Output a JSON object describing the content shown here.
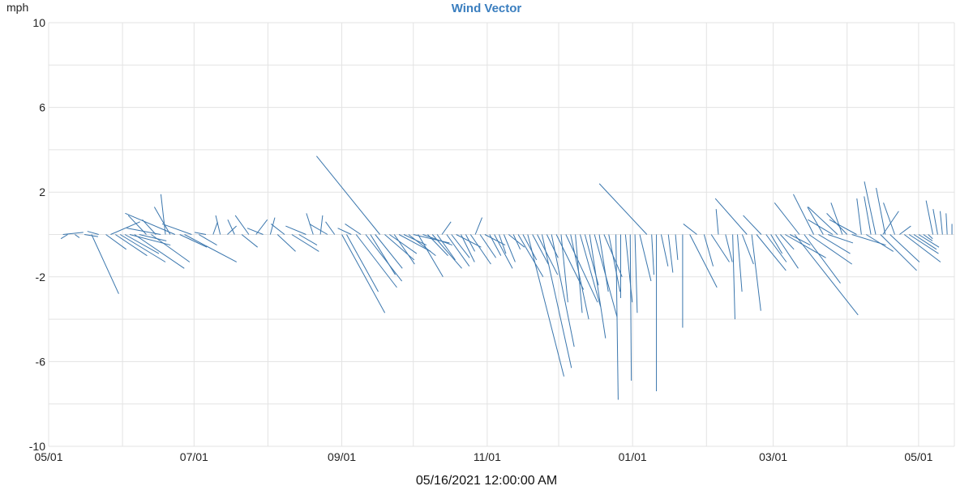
{
  "chart_data": {
    "type": "vector",
    "title": "Wind Vector",
    "ylabel": "mph",
    "ylim": [
      -10,
      10
    ],
    "yticks": [
      10,
      6,
      2,
      -2,
      -6,
      -10
    ],
    "xlim": [
      "2021-05-01",
      "2022-05-16"
    ],
    "xticks": [
      {
        "date": "2021-05-01",
        "label": "05/01"
      },
      {
        "date": "2021-07-01",
        "label": "07/01"
      },
      {
        "date": "2021-09-01",
        "label": "09/01"
      },
      {
        "date": "2021-11-01",
        "label": "11/01"
      },
      {
        "date": "2022-01-01",
        "label": "01/01"
      },
      {
        "date": "2022-03-01",
        "label": "03/01"
      },
      {
        "date": "2022-05-01",
        "label": "05/01"
      }
    ],
    "grid": true,
    "vector_time_unit": "days per mph",
    "vector_time_scale": 9.5,
    "series_color": "#3a76ad",
    "vectors": [
      {
        "date": "2021-05-07",
        "u": 0.9,
        "v": 0.1
      },
      {
        "date": "2021-05-09",
        "u": -0.3,
        "v": -0.2
      },
      {
        "date": "2021-05-12",
        "u": 0.2,
        "v": -0.15
      },
      {
        "date": "2021-05-16",
        "u": 0.6,
        "v": -0.1
      },
      {
        "date": "2021-05-19",
        "u": 1.2,
        "v": -2.8
      },
      {
        "date": "2021-05-22",
        "u": -0.5,
        "v": 0.15
      },
      {
        "date": "2021-05-25",
        "u": 0.9,
        "v": -0.7
      },
      {
        "date": "2021-05-27",
        "u": 1.3,
        "v": 0.6
      },
      {
        "date": "2021-05-29",
        "u": 1.4,
        "v": -1.0
      },
      {
        "date": "2021-05-31",
        "u": 2.0,
        "v": -1.3
      },
      {
        "date": "2021-06-02",
        "u": 1.5,
        "v": -0.9
      },
      {
        "date": "2021-06-04",
        "u": 1.8,
        "v": -0.5
      },
      {
        "date": "2021-06-06",
        "u": 2.2,
        "v": -1.6
      },
      {
        "date": "2021-06-08",
        "u": 1.2,
        "v": -0.3
      },
      {
        "date": "2021-06-11",
        "u": -0.8,
        "v": 0.9
      },
      {
        "date": "2021-06-13",
        "u": 1.7,
        "v": -1.3
      },
      {
        "date": "2021-06-15",
        "u": -0.6,
        "v": 0.7
      },
      {
        "date": "2021-06-17",
        "u": -1.5,
        "v": 0.3
      },
      {
        "date": "2021-06-19",
        "u": -0.2,
        "v": 1.9
      },
      {
        "date": "2021-06-21",
        "u": -0.7,
        "v": 1.3
      },
      {
        "date": "2021-06-23",
        "u": -2.2,
        "v": 1.0
      },
      {
        "date": "2021-06-25",
        "u": 1.2,
        "v": -0.6
      },
      {
        "date": "2021-06-27",
        "u": 2.3,
        "v": -1.3
      },
      {
        "date": "2021-06-30",
        "u": -1.3,
        "v": 0.5
      },
      {
        "date": "2021-07-03",
        "u": 0.8,
        "v": -0.5
      },
      {
        "date": "2021-07-06",
        "u": -0.5,
        "v": 0.1
      },
      {
        "date": "2021-07-09",
        "u": 0.2,
        "v": 0.6
      },
      {
        "date": "2021-07-12",
        "u": -0.2,
        "v": 0.9
      },
      {
        "date": "2021-07-15",
        "u": 0.4,
        "v": 0.4
      },
      {
        "date": "2021-07-18",
        "u": -0.3,
        "v": 0.7
      },
      {
        "date": "2021-07-21",
        "u": 0.7,
        "v": -0.6
      },
      {
        "date": "2021-07-24",
        "u": -0.6,
        "v": 0.9
      },
      {
        "date": "2021-07-27",
        "u": 0.5,
        "v": 0.7
      },
      {
        "date": "2021-07-30",
        "u": -0.7,
        "v": 0.3
      },
      {
        "date": "2021-08-02",
        "u": 0.2,
        "v": 0.8
      },
      {
        "date": "2021-08-05",
        "u": 0.8,
        "v": -0.8
      },
      {
        "date": "2021-08-08",
        "u": -0.6,
        "v": 0.5
      },
      {
        "date": "2021-08-11",
        "u": 1.2,
        "v": -0.8
      },
      {
        "date": "2021-08-14",
        "u": 0.8,
        "v": -0.5
      },
      {
        "date": "2021-08-17",
        "u": -0.9,
        "v": 0.4
      },
      {
        "date": "2021-08-20",
        "u": -0.3,
        "v": 1.0
      },
      {
        "date": "2021-08-23",
        "u": 0.1,
        "v": 0.9
      },
      {
        "date": "2021-08-26",
        "u": -0.8,
        "v": 0.5
      },
      {
        "date": "2021-08-29",
        "u": -0.4,
        "v": 0.6
      },
      {
        "date": "2021-09-01",
        "u": 1.9,
        "v": -3.7
      },
      {
        "date": "2021-09-03",
        "u": 1.4,
        "v": -2.7
      },
      {
        "date": "2021-09-05",
        "u": -0.6,
        "v": 0.3
      },
      {
        "date": "2021-09-07",
        "u": 1.8,
        "v": -2.5
      },
      {
        "date": "2021-09-09",
        "u": -0.7,
        "v": 0.5
      },
      {
        "date": "2021-09-11",
        "u": 1.6,
        "v": -2.2
      },
      {
        "date": "2021-09-13",
        "u": 1.1,
        "v": -1.9
      },
      {
        "date": "2021-09-15",
        "u": 1.2,
        "v": -1.6
      },
      {
        "date": "2021-09-17",
        "u": -2.8,
        "v": 3.7
      },
      {
        "date": "2021-09-19",
        "u": 1.3,
        "v": -1.2
      },
      {
        "date": "2021-09-21",
        "u": 1.2,
        "v": -0.9
      },
      {
        "date": "2021-09-23",
        "u": 0.9,
        "v": -1.4
      },
      {
        "date": "2021-09-25",
        "u": 1.4,
        "v": -0.8
      },
      {
        "date": "2021-09-27",
        "u": 1.0,
        "v": -0.5
      },
      {
        "date": "2021-09-29",
        "u": 1.2,
        "v": -1.0
      },
      {
        "date": "2021-10-01",
        "u": 1.6,
        "v": -0.4
      },
      {
        "date": "2021-10-03",
        "u": 1.1,
        "v": -2.0
      },
      {
        "date": "2021-10-05",
        "u": 1.3,
        "v": -0.5
      },
      {
        "date": "2021-10-07",
        "u": 0.9,
        "v": -1.0
      },
      {
        "date": "2021-10-09",
        "u": 1.3,
        "v": -1.6
      },
      {
        "date": "2021-10-11",
        "u": 0.8,
        "v": -1.2
      },
      {
        "date": "2021-10-13",
        "u": 0.4,
        "v": 0.6
      },
      {
        "date": "2021-10-15",
        "u": 1.0,
        "v": -1.5
      },
      {
        "date": "2021-10-17",
        "u": 0.8,
        "v": -1.1
      },
      {
        "date": "2021-10-19",
        "u": 1.1,
        "v": -0.6
      },
      {
        "date": "2021-10-21",
        "u": 0.6,
        "v": -1.3
      },
      {
        "date": "2021-10-23",
        "u": 0.4,
        "v": -0.8
      },
      {
        "date": "2021-10-25",
        "u": 0.9,
        "v": -1.4
      },
      {
        "date": "2021-10-27",
        "u": 0.3,
        "v": 0.8
      },
      {
        "date": "2021-10-29",
        "u": 0.7,
        "v": -1.1
      },
      {
        "date": "2021-10-31",
        "u": 0.9,
        "v": -0.5
      },
      {
        "date": "2021-11-02",
        "u": 0.5,
        "v": -1.0
      },
      {
        "date": "2021-11-04",
        "u": 0.8,
        "v": -1.6
      },
      {
        "date": "2021-11-06",
        "u": 0.3,
        "v": -0.9
      },
      {
        "date": "2021-11-08",
        "u": 0.5,
        "v": -1.3
      },
      {
        "date": "2021-11-10",
        "u": 0.7,
        "v": -0.6
      },
      {
        "date": "2021-11-12",
        "u": 0.3,
        "v": -0.7
      },
      {
        "date": "2021-11-14",
        "u": 1.1,
        "v": -2.0
      },
      {
        "date": "2021-11-16",
        "u": 0.6,
        "v": -1.2
      },
      {
        "date": "2021-11-18",
        "u": 1.6,
        "v": -6.7
      },
      {
        "date": "2021-11-20",
        "u": 0.7,
        "v": -1.4
      },
      {
        "date": "2021-11-22",
        "u": 0.9,
        "v": -1.9
      },
      {
        "date": "2021-11-24",
        "u": 1.3,
        "v": -6.3
      },
      {
        "date": "2021-11-26",
        "u": 0.5,
        "v": -1.1
      },
      {
        "date": "2021-11-28",
        "u": 1.0,
        "v": -5.3
      },
      {
        "date": "2021-11-30",
        "u": 1.2,
        "v": -2.6
      },
      {
        "date": "2021-12-02",
        "u": 0.3,
        "v": -3.2
      },
      {
        "date": "2021-12-04",
        "u": 1.4,
        "v": -3.2
      },
      {
        "date": "2021-12-06",
        "u": 0.8,
        "v": -4.0
      },
      {
        "date": "2021-12-08",
        "u": 0.3,
        "v": -3.7
      },
      {
        "date": "2021-12-10",
        "u": 0.9,
        "v": -3.4
      },
      {
        "date": "2021-12-12",
        "u": 0.6,
        "v": -2.4
      },
      {
        "date": "2021-12-14",
        "u": 0.7,
        "v": -4.9
      },
      {
        "date": "2021-12-16",
        "u": 1.0,
        "v": -3.9
      },
      {
        "date": "2021-12-18",
        "u": 0.4,
        "v": -2.7
      },
      {
        "date": "2021-12-20",
        "u": 0.8,
        "v": -2.0
      },
      {
        "date": "2021-12-22",
        "u": 0.5,
        "v": -2.7
      },
      {
        "date": "2021-12-25",
        "u": 0.1,
        "v": -7.8
      },
      {
        "date": "2021-12-27",
        "u": 0.0,
        "v": -3.0
      },
      {
        "date": "2021-12-29",
        "u": 0.3,
        "v": -3.2
      },
      {
        "date": "2021-12-31",
        "u": 0.05,
        "v": -6.9
      },
      {
        "date": "2022-01-02",
        "u": 0.1,
        "v": -3.7
      },
      {
        "date": "2022-01-04",
        "u": 0.5,
        "v": -2.2
      },
      {
        "date": "2022-01-07",
        "u": -2.1,
        "v": 2.4
      },
      {
        "date": "2022-01-09",
        "u": 0.1,
        "v": -1.9
      },
      {
        "date": "2022-01-11",
        "u": 0.0,
        "v": -7.4
      },
      {
        "date": "2022-01-13",
        "u": 0.3,
        "v": -1.5
      },
      {
        "date": "2022-01-16",
        "u": 0.2,
        "v": -1.8
      },
      {
        "date": "2022-01-19",
        "u": 0.1,
        "v": -1.2
      },
      {
        "date": "2022-01-22",
        "u": 0.0,
        "v": -4.4
      },
      {
        "date": "2022-01-25",
        "u": 1.2,
        "v": -2.5
      },
      {
        "date": "2022-01-28",
        "u": -0.6,
        "v": 0.5
      },
      {
        "date": "2022-01-31",
        "u": 0.4,
        "v": -1.5
      },
      {
        "date": "2022-02-03",
        "u": 0.8,
        "v": -1.3
      },
      {
        "date": "2022-02-06",
        "u": -0.1,
        "v": 1.2
      },
      {
        "date": "2022-02-09",
        "u": 0.3,
        "v": -1.3
      },
      {
        "date": "2022-02-12",
        "u": 0.1,
        "v": -4.0
      },
      {
        "date": "2022-02-14",
        "u": 0.2,
        "v": -2.7
      },
      {
        "date": "2022-02-16",
        "u": 0.5,
        "v": -1.4
      },
      {
        "date": "2022-02-18",
        "u": -1.4,
        "v": 1.7
      },
      {
        "date": "2022-02-20",
        "u": 0.4,
        "v": -3.6
      },
      {
        "date": "2022-02-22",
        "u": 1.3,
        "v": -1.7
      },
      {
        "date": "2022-02-24",
        "u": -0.8,
        "v": 0.9
      },
      {
        "date": "2022-02-26",
        "u": 0.9,
        "v": -1.3
      },
      {
        "date": "2022-02-28",
        "u": 0.5,
        "v": -0.9
      },
      {
        "date": "2022-03-02",
        "u": 1.0,
        "v": -1.6
      },
      {
        "date": "2022-03-04",
        "u": 0.6,
        "v": -0.7
      },
      {
        "date": "2022-03-06",
        "u": 1.8,
        "v": -1.1
      },
      {
        "date": "2022-03-08",
        "u": 0.9,
        "v": -0.5
      },
      {
        "date": "2022-03-10",
        "u": 2.8,
        "v": -3.8
      },
      {
        "date": "2022-03-12",
        "u": -1.1,
        "v": 1.5
      },
      {
        "date": "2022-03-14",
        "u": 1.6,
        "v": -2.3
      },
      {
        "date": "2022-03-16",
        "u": 1.9,
        "v": -1.4
      },
      {
        "date": "2022-03-18",
        "u": -0.9,
        "v": 1.9
      },
      {
        "date": "2022-03-20",
        "u": 1.4,
        "v": -0.9
      },
      {
        "date": "2022-03-22",
        "u": -0.7,
        "v": 1.3
      },
      {
        "date": "2022-03-24",
        "u": 1.1,
        "v": -0.4
      },
      {
        "date": "2022-03-26",
        "u": -1.1,
        "v": 0.7
      },
      {
        "date": "2022-03-28",
        "u": -1.3,
        "v": 1.3
      },
      {
        "date": "2022-03-30",
        "u": -0.5,
        "v": 1.5
      },
      {
        "date": "2022-04-01",
        "u": -0.9,
        "v": 1.0
      },
      {
        "date": "2022-04-03",
        "u": 1.5,
        "v": -0.5
      },
      {
        "date": "2022-04-05",
        "u": -1.2,
        "v": 0.7
      },
      {
        "date": "2022-04-07",
        "u": -0.2,
        "v": 1.7
      },
      {
        "date": "2022-04-09",
        "u": 1.2,
        "v": -0.8
      },
      {
        "date": "2022-04-11",
        "u": -0.3,
        "v": 1.8
      },
      {
        "date": "2022-04-13",
        "u": -0.5,
        "v": 2.5
      },
      {
        "date": "2022-04-15",
        "u": 1.6,
        "v": -1.7
      },
      {
        "date": "2022-04-16",
        "u": 0.7,
        "v": 1.1
      },
      {
        "date": "2022-04-17",
        "u": -0.4,
        "v": 2.2
      },
      {
        "date": "2022-04-19",
        "u": 1.3,
        "v": -1.3
      },
      {
        "date": "2022-04-21",
        "u": -0.5,
        "v": 1.5
      },
      {
        "date": "2022-04-23",
        "u": 0.5,
        "v": 0.4
      },
      {
        "date": "2022-04-25",
        "u": 1.6,
        "v": -1.3
      },
      {
        "date": "2022-04-27",
        "u": 1.3,
        "v": -0.9
      },
      {
        "date": "2022-04-29",
        "u": 1.0,
        "v": -0.7
      },
      {
        "date": "2022-05-01",
        "u": 0.9,
        "v": -0.6
      },
      {
        "date": "2022-05-03",
        "u": 0.4,
        "v": -0.3
      },
      {
        "date": "2022-05-05",
        "u": 0.2,
        "v": -0.2
      },
      {
        "date": "2022-05-07",
        "u": -0.3,
        "v": 1.6
      },
      {
        "date": "2022-05-09",
        "u": -0.2,
        "v": 1.2
      },
      {
        "date": "2022-05-11",
        "u": -0.1,
        "v": 1.1
      },
      {
        "date": "2022-05-13",
        "u": -0.05,
        "v": 1.0
      },
      {
        "date": "2022-05-15",
        "u": 0.0,
        "v": 0.5
      }
    ]
  },
  "footer": {
    "timestamp": "05/16/2021 12:00:00 AM"
  }
}
